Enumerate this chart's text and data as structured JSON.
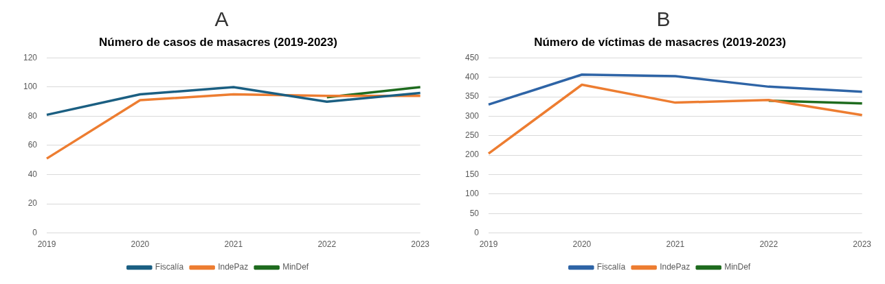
{
  "chart_data": [
    {
      "type": "line",
      "annotations": [
        "A"
      ],
      "title": "Número de casos de masacres (2019-2023)",
      "categories": [
        "2019",
        "2020",
        "2021",
        "2022",
        "2023"
      ],
      "series": [
        {
          "name": "Fiscalía",
          "color": "#1b5f82",
          "values": [
            81,
            95,
            100,
            90,
            96
          ]
        },
        {
          "name": "IndePaz",
          "color": "#ed7d31",
          "values": [
            51,
            91,
            95,
            94,
            94
          ]
        },
        {
          "name": "MinDef",
          "color": "#1e6b1e",
          "values": [
            null,
            null,
            null,
            93,
            100
          ]
        }
      ],
      "ylim": [
        0,
        120
      ],
      "yticks": [
        0,
        20,
        40,
        60,
        80,
        100,
        120
      ],
      "grid": "y",
      "legend": "bottom",
      "marker": "none",
      "line_style": "solid"
    },
    {
      "type": "line",
      "annotations": [
        "B"
      ],
      "title": "Número de víctimas de masacres (2019-2023)",
      "categories": [
        "2019",
        "2020",
        "2021",
        "2022",
        "2023"
      ],
      "series": [
        {
          "name": "Fiscalía",
          "color": "#2e64a6",
          "values": [
            330,
            407,
            403,
            376,
            363
          ]
        },
        {
          "name": "IndePaz",
          "color": "#ed7d31",
          "values": [
            204,
            381,
            335,
            342,
            303
          ]
        },
        {
          "name": "MinDef",
          "color": "#1e6b1e",
          "values": [
            null,
            null,
            null,
            340,
            333
          ]
        }
      ],
      "ylim": [
        0,
        450
      ],
      "yticks": [
        0,
        50,
        100,
        150,
        200,
        250,
        300,
        350,
        400,
        450
      ],
      "grid": "y",
      "legend": "bottom",
      "marker": "none",
      "line_style": "solid"
    }
  ]
}
